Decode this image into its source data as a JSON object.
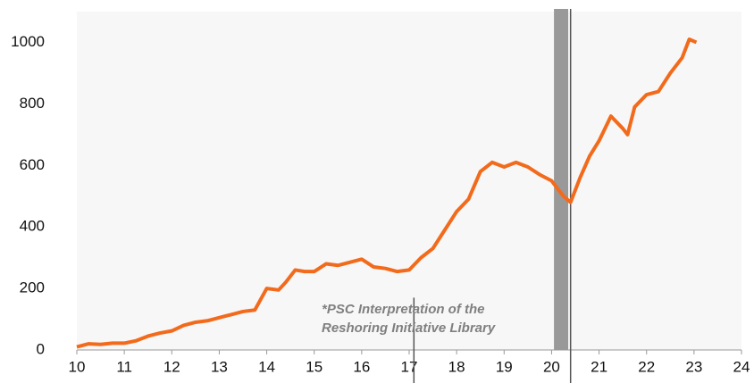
{
  "chart_data": {
    "type": "line",
    "x": [
      10.0,
      10.25,
      10.5,
      10.75,
      11.0,
      11.25,
      11.5,
      11.75,
      12.0,
      12.25,
      12.5,
      12.75,
      13.0,
      13.25,
      13.5,
      13.75,
      14.0,
      14.25,
      14.4,
      14.6,
      14.8,
      15.0,
      15.25,
      15.5,
      15.75,
      16.0,
      16.25,
      16.5,
      16.75,
      17.0,
      17.25,
      17.5,
      17.75,
      18.0,
      18.25,
      18.5,
      18.75,
      19.0,
      19.25,
      19.5,
      19.75,
      20.0,
      20.25,
      20.4,
      20.6,
      20.8,
      21.0,
      21.25,
      21.5,
      21.6,
      21.75,
      22.0,
      22.25,
      22.5,
      22.75,
      22.9,
      23.05
    ],
    "series": [
      {
        "color": "#f26a1b",
        "values": [
          10,
          20,
          18,
          22,
          22,
          30,
          45,
          55,
          62,
          80,
          90,
          95,
          105,
          115,
          125,
          130,
          200,
          195,
          220,
          260,
          255,
          255,
          280,
          275,
          285,
          295,
          270,
          265,
          255,
          260,
          300,
          330,
          390,
          450,
          490,
          580,
          610,
          595,
          610,
          595,
          570,
          550,
          500,
          480,
          560,
          630,
          680,
          760,
          720,
          700,
          790,
          830,
          840,
          900,
          950,
          1010,
          1000
        ]
      }
    ],
    "xlim": [
      10,
      24
    ],
    "xticks": [
      10,
      11,
      12,
      13,
      14,
      15,
      16,
      17,
      18,
      19,
      20,
      21,
      22,
      23,
      24
    ],
    "ylim": [
      0,
      1100
    ],
    "yticks": [
      0,
      200,
      400,
      600,
      800,
      1000
    ],
    "shade": [
      20.05,
      20.35
    ],
    "vlines": [
      17.1,
      20.4
    ],
    "annotation": [
      "*PSC Interpretation of the",
      "Reshoring Initiative Library"
    ]
  }
}
